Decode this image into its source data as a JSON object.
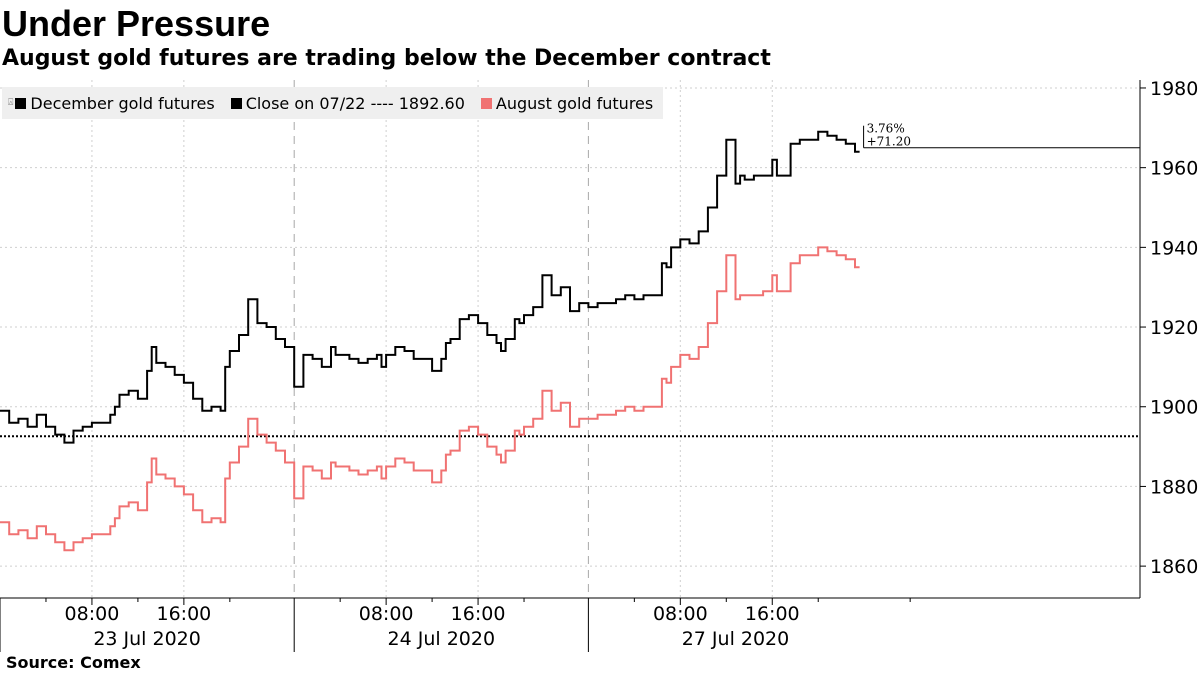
{
  "title": "Under Pressure",
  "subtitle": "August gold futures are trading below the December contract",
  "source": "Source: Comex",
  "legend": {
    "december": "December gold futures",
    "close": "Close on 07/22 ---- 1892.60",
    "august": "August gold futures"
  },
  "colors": {
    "december": "#000000",
    "august": "#f07272",
    "close_line": "#000000",
    "grid": "#cfcfcf",
    "legend_bg": "#efefef"
  },
  "chart_data": {
    "type": "line",
    "ylim": [
      1852,
      1982
    ],
    "y_ticks": [
      1860,
      1880,
      1900,
      1920,
      1940,
      1960,
      1980
    ],
    "x_ticks": [
      "08:00",
      "16:00",
      "08:00",
      "16:00",
      "08:00",
      "16:00"
    ],
    "x_days": [
      "23 Jul 2020",
      "24 Jul 2020",
      "27 Jul 2020"
    ],
    "reference_line": {
      "label": "Close on 07/22",
      "value": 1892.6
    },
    "annotation": {
      "percent": "3.76%",
      "change": "+71.20"
    },
    "series": [
      {
        "name": "December gold futures",
        "x": [
          0,
          1,
          2,
          3,
          4,
          5,
          6,
          7,
          8,
          9,
          10,
          11,
          12,
          12.5,
          13,
          14,
          15,
          16,
          16.5,
          17,
          18,
          19,
          20,
          21,
          22,
          23,
          24,
          24.5,
          25,
          26,
          27,
          28,
          29,
          30,
          31,
          32,
          33,
          34,
          35,
          36,
          36.5,
          37,
          38,
          39,
          40,
          41,
          41.5,
          42,
          43,
          44,
          45,
          46,
          47,
          48,
          48.5,
          49,
          50,
          51,
          52,
          53,
          54,
          54.5,
          55,
          56,
          56.5,
          57,
          58,
          59,
          60,
          60.5,
          61,
          62,
          63,
          64,
          65,
          66,
          67,
          68,
          69,
          70,
          71,
          72,
          72.5,
          73,
          74,
          75,
          76,
          77,
          78,
          79,
          80,
          80.5,
          81,
          82,
          83,
          84,
          84.5,
          85,
          86,
          87,
          88,
          89,
          90,
          91,
          92,
          93,
          93.5
        ],
        "values": [
          1899,
          1896,
          1897,
          1895,
          1898,
          1895,
          1893,
          1891,
          1894,
          1895,
          1896,
          1896,
          1898,
          1900,
          1903,
          1904,
          1902,
          1909,
          1915,
          1911,
          1910,
          1908,
          1906,
          1902,
          1899,
          1900,
          1899,
          1910,
          1914,
          1918,
          1927,
          1921,
          1920,
          1917,
          1915,
          1905,
          1913,
          1912,
          1910,
          1915,
          1913,
          1913,
          1912,
          1911,
          1912,
          1913,
          1910,
          1913,
          1915,
          1914,
          1912,
          1912,
          1909,
          1912,
          1916,
          1917,
          1922,
          1923,
          1921,
          1918,
          1916,
          1914,
          1917,
          1922,
          1921,
          1923,
          1925,
          1933,
          1928,
          1928,
          1930,
          1924,
          1926,
          1925,
          1926,
          1926,
          1927,
          1928,
          1927,
          1928,
          1928,
          1936,
          1935,
          1940,
          1942,
          1941,
          1944,
          1950,
          1958,
          1967,
          1956,
          1958,
          1957,
          1958,
          1958,
          1962,
          1958,
          1958,
          1966,
          1967,
          1967,
          1969,
          1968,
          1967,
          1966,
          1964,
          1964
        ]
      },
      {
        "name": "August gold futures",
        "x": [
          0,
          1,
          2,
          3,
          4,
          5,
          6,
          7,
          8,
          9,
          10,
          11,
          12,
          12.5,
          13,
          14,
          15,
          16,
          16.5,
          17,
          18,
          19,
          20,
          21,
          22,
          23,
          24,
          24.5,
          25,
          26,
          27,
          28,
          29,
          30,
          31,
          32,
          33,
          34,
          35,
          36,
          36.5,
          37,
          38,
          39,
          40,
          41,
          41.5,
          42,
          43,
          44,
          45,
          46,
          47,
          48,
          48.5,
          49,
          50,
          51,
          52,
          53,
          54,
          54.5,
          55,
          56,
          56.5,
          57,
          58,
          59,
          60,
          60.5,
          61,
          62,
          63,
          64,
          65,
          66,
          67,
          68,
          69,
          70,
          71,
          72,
          72.5,
          73,
          74,
          75,
          76,
          77,
          78,
          79,
          80,
          80.5,
          81,
          82,
          83,
          84,
          84.5,
          85,
          86,
          87,
          88,
          89,
          90,
          91,
          92,
          93,
          93.5
        ],
        "values": [
          1871,
          1868,
          1869,
          1867,
          1870,
          1868,
          1866,
          1864,
          1866,
          1867,
          1868,
          1868,
          1870,
          1872,
          1875,
          1876,
          1874,
          1881,
          1887,
          1883,
          1882,
          1880,
          1878,
          1874,
          1871,
          1872,
          1871,
          1882,
          1886,
          1890,
          1897,
          1893,
          1891,
          1889,
          1886,
          1877,
          1885,
          1884,
          1882,
          1886,
          1885,
          1885,
          1884,
          1883,
          1884,
          1885,
          1882,
          1885,
          1887,
          1886,
          1884,
          1884,
          1881,
          1884,
          1888,
          1889,
          1894,
          1895,
          1893,
          1890,
          1888,
          1886,
          1889,
          1894,
          1893,
          1895,
          1897,
          1904,
          1899,
          1899,
          1901,
          1895,
          1897,
          1897,
          1898,
          1898,
          1899,
          1900,
          1899,
          1900,
          1900,
          1907,
          1906,
          1910,
          1913,
          1912,
          1915,
          1921,
          1929,
          1938,
          1927,
          1928,
          1928,
          1928,
          1929,
          1933,
          1929,
          1929,
          1936,
          1938,
          1938,
          1940,
          1939,
          1938,
          1937,
          1935,
          1935
        ]
      }
    ]
  }
}
